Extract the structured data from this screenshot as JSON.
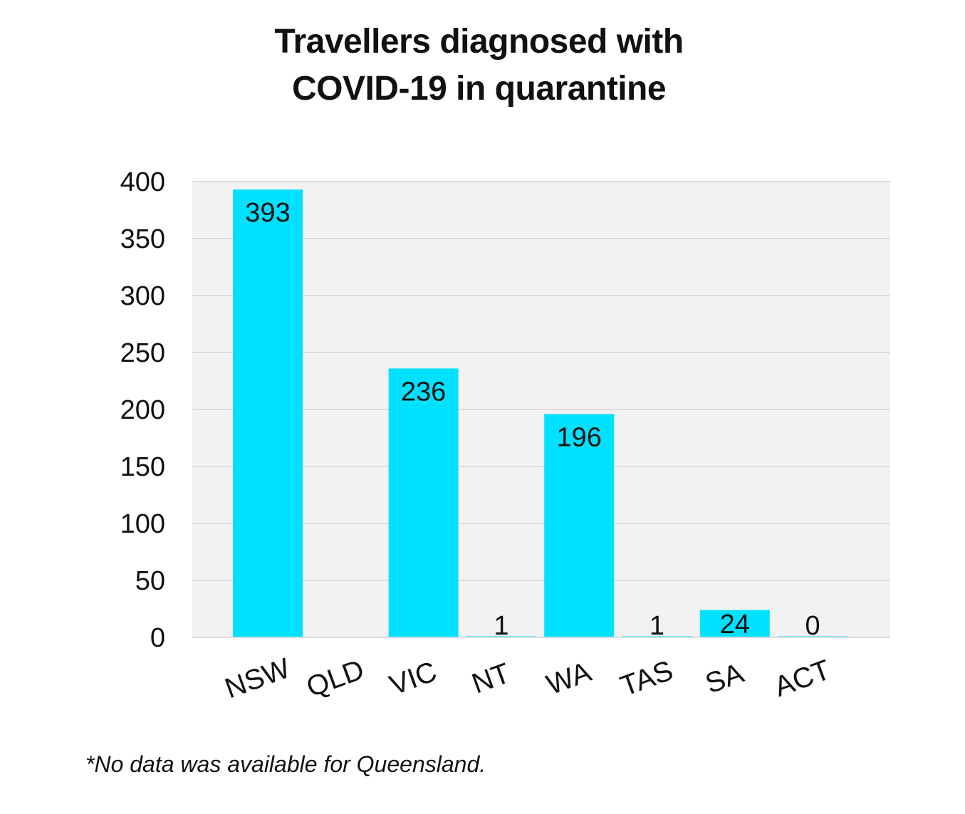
{
  "title_lines": [
    "Travellers diagnosed with",
    "COVID-19 in quarantine"
  ],
  "footnote": "*No data was available for Queensland.",
  "colors": {
    "bar": "#00e1ff",
    "plot_background": "#f2f2f2",
    "grid": "#dcdcdc",
    "text": "#111111"
  },
  "chart_data": {
    "type": "bar",
    "title": "Travellers diagnosed with COVID-19 in quarantine",
    "xlabel": "",
    "ylabel": "",
    "categories": [
      "NSW",
      "QLD",
      "VIC",
      "NT",
      "WA",
      "TAS",
      "SA",
      "ACT"
    ],
    "values": [
      393,
      null,
      236,
      1,
      196,
      1,
      24,
      0
    ],
    "data_labels": [
      "393",
      "",
      "236",
      "1",
      "196",
      "1",
      "24",
      "0"
    ],
    "ylim": [
      0,
      400
    ],
    "yticks": [
      0,
      50,
      100,
      150,
      200,
      250,
      300,
      350,
      400
    ],
    "grid": true,
    "legend": "none"
  }
}
